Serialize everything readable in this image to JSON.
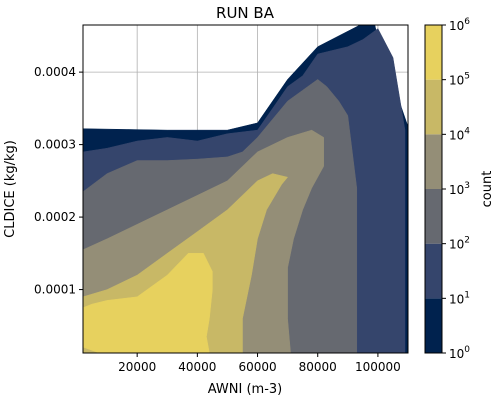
{
  "chart_data": {
    "type": "heatmap",
    "title": "RUN BA",
    "xlabel": "AWNI (m-3)",
    "ylabel": "CLDICE (kg/kg)",
    "xlim": [
      2000,
      110000
    ],
    "ylim": [
      1.25e-05,
      0.000465
    ],
    "x_ticks": [
      20000,
      40000,
      60000,
      80000,
      100000
    ],
    "x_tick_labels": [
      "20000",
      "40000",
      "60000",
      "80000",
      "100000"
    ],
    "y_ticks": [
      0.0001,
      0.0002,
      0.0003,
      0.0004
    ],
    "y_tick_labels": [
      "0.0001",
      "0.0002",
      "0.0003",
      "0.0004"
    ],
    "grid": true,
    "colorbar": {
      "label": "count",
      "scale": "log",
      "levels": [
        1,
        10,
        100,
        1000,
        10000,
        100000,
        1000000
      ],
      "tick_labels": [
        "10^0",
        "10^1",
        "10^2",
        "10^3",
        "10^4",
        "10^5",
        "10^6"
      ],
      "colors": [
        "#00224e",
        "#35456c",
        "#666970",
        "#948e77",
        "#c8b866",
        "#e7d15e"
      ]
    },
    "contour_levels": [
      {
        "level_min": 1,
        "color": "#00224e",
        "polygon": [
          [
            2000,
            1.25e-05
          ],
          [
            110000,
            1.25e-05
          ],
          [
            110000,
            0.000325
          ],
          [
            100000,
            0.000445
          ],
          [
            99000,
            0.000465
          ],
          [
            94000,
            0.000465
          ],
          [
            80000,
            0.000435
          ],
          [
            70000,
            0.00039
          ],
          [
            60000,
            0.00033
          ],
          [
            50000,
            0.00032
          ],
          [
            30000,
            0.00032
          ],
          [
            2000,
            0.000322
          ]
        ]
      },
      {
        "level_min": 10,
        "color": "#35456c",
        "polygon": [
          [
            2000,
            1.25e-05
          ],
          [
            109000,
            1.25e-05
          ],
          [
            109000,
            0.00032
          ],
          [
            105000,
            0.00042
          ],
          [
            100000,
            0.00046
          ],
          [
            95000,
            0.000445
          ],
          [
            90000,
            0.000435
          ],
          [
            80000,
            0.000425
          ],
          [
            75000,
            0.000395
          ],
          [
            70000,
            0.00038
          ],
          [
            65000,
            0.00035
          ],
          [
            60000,
            0.00032
          ],
          [
            50000,
            0.000315
          ],
          [
            40000,
            0.000305
          ],
          [
            30000,
            0.00031
          ],
          [
            20000,
            0.000305
          ],
          [
            10000,
            0.000295
          ],
          [
            2000,
            0.00029
          ]
        ]
      },
      {
        "level_min": 100,
        "color": "#666970",
        "polygon": [
          [
            2000,
            1.25e-05
          ],
          [
            93000,
            1.25e-05
          ],
          [
            93000,
            0.00024
          ],
          [
            90000,
            0.00034
          ],
          [
            87000,
            0.00036
          ],
          [
            83000,
            0.00038
          ],
          [
            80000,
            0.00039
          ],
          [
            75000,
            0.000375
          ],
          [
            70000,
            0.00036
          ],
          [
            60000,
            0.00031
          ],
          [
            55000,
            0.00029
          ],
          [
            50000,
            0.000283
          ],
          [
            40000,
            0.00028
          ],
          [
            30000,
            0.000278
          ],
          [
            20000,
            0.000278
          ],
          [
            10000,
            0.00026
          ],
          [
            2000,
            0.000235
          ]
        ]
      },
      {
        "level_min": 1000,
        "color": "#948e77",
        "polygon": [
          [
            2000,
            1.25e-05
          ],
          [
            71000,
            1.25e-05
          ],
          [
            70000,
            6e-05
          ],
          [
            70000,
            0.00013
          ],
          [
            72000,
            0.00017
          ],
          [
            75000,
            0.00021
          ],
          [
            78000,
            0.00024
          ],
          [
            82000,
            0.00027
          ],
          [
            82000,
            0.00031
          ],
          [
            78000,
            0.00032
          ],
          [
            70000,
            0.00031
          ],
          [
            60000,
            0.00029
          ],
          [
            50000,
            0.00025
          ],
          [
            40000,
            0.00023
          ],
          [
            30000,
            0.00021
          ],
          [
            20000,
            0.00019
          ],
          [
            10000,
            0.00017
          ],
          [
            2000,
            0.000155
          ]
        ]
      },
      {
        "level_min": 10000,
        "color": "#c8b866",
        "polygon": [
          [
            2000,
            1.25e-05
          ],
          [
            55000,
            1.25e-05
          ],
          [
            55000,
            6e-05
          ],
          [
            58000,
            0.00012
          ],
          [
            60000,
            0.00017
          ],
          [
            63000,
            0.00021
          ],
          [
            68000,
            0.000245
          ],
          [
            70000,
            0.000255
          ],
          [
            65000,
            0.00026
          ],
          [
            60000,
            0.00025
          ],
          [
            50000,
            0.00021
          ],
          [
            40000,
            0.00018
          ],
          [
            30000,
            0.00015
          ],
          [
            20000,
            0.00012
          ],
          [
            10000,
            0.0001
          ],
          [
            2000,
            9e-05
          ]
        ]
      },
      {
        "level_min": 100000,
        "color": "#e7d15e",
        "polygon": [
          [
            2000,
            1.25e-05
          ],
          [
            44000,
            1.25e-05
          ],
          [
            43000,
            3.5e-05
          ],
          [
            44000,
            6e-05
          ],
          [
            45000,
            0.0001
          ],
          [
            45000,
            0.000125
          ],
          [
            42000,
            0.00015
          ],
          [
            37000,
            0.00015
          ],
          [
            30000,
            0.00012
          ],
          [
            20000,
            9e-05
          ],
          [
            10000,
            8.5e-05
          ],
          [
            5000,
            8e-05
          ],
          [
            2000,
            7.5e-05
          ]
        ]
      },
      {
        "level_min": 10000,
        "color": "#c8b866",
        "polygon": [
          [
            2000,
            1.25e-05
          ],
          [
            7000,
            1.25e-05
          ],
          [
            2000,
            2e-05
          ]
        ]
      }
    ]
  }
}
